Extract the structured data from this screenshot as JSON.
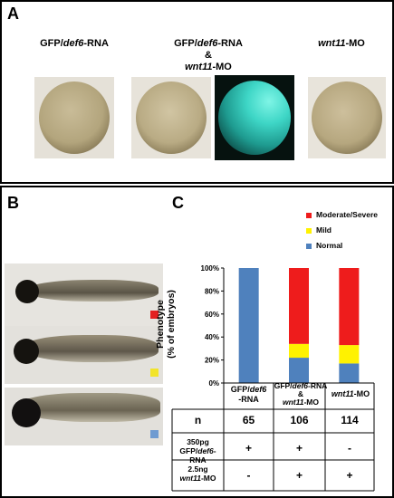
{
  "panels": {
    "a": {
      "letter": "A",
      "groups": [
        {
          "line1_pre": "GFP/",
          "line1_it": "def6",
          "line1_post": "-RNA"
        },
        {
          "line1_pre": "GFP/",
          "line1_it": "def6",
          "line1_post": "-RNA",
          "line2": "&",
          "line3_it": "wnt11",
          "line3_post": "-MO"
        },
        {
          "line1_it": "wnt11",
          "line1_post": "-MO"
        }
      ]
    },
    "b": {
      "letter": "B",
      "marker_colors": [
        "#e32020",
        "#f2e42a",
        "#6f9bd1"
      ]
    },
    "c": {
      "letter": "C"
    }
  },
  "chart_data": {
    "type": "bar",
    "stacked": true,
    "ylabel_line1": "Phenotype",
    "ylabel_line2": "(% of embryos)",
    "ylim": [
      0,
      100
    ],
    "yticks": [
      "0%",
      "20%",
      "40%",
      "60%",
      "80%",
      "100%"
    ],
    "legend": [
      {
        "name": "Moderate/Severe",
        "color": "#ee1c1c"
      },
      {
        "name": "Mild",
        "color": "#fff200"
      },
      {
        "name": "Normal",
        "color": "#4f81bd"
      }
    ],
    "categories": [
      {
        "pre": "GFP/",
        "it": "def6",
        "post": "",
        "line2": "-RNA"
      },
      {
        "pre": "GFP/",
        "it": "def6",
        "post": "-RNA",
        "line2": "&",
        "line3_it": "wnt11",
        "line3_post": "-MO"
      },
      {
        "pre": "",
        "it": "wnt11",
        "post": "-MO"
      }
    ],
    "series": [
      {
        "name": "Normal",
        "values": [
          100,
          22,
          17
        ],
        "color": "#4f81bd"
      },
      {
        "name": "Mild",
        "values": [
          0,
          12,
          16
        ],
        "color": "#fff200"
      },
      {
        "name": "Moderate/Severe",
        "values": [
          0,
          66,
          67
        ],
        "color": "#ee1c1c"
      }
    ]
  },
  "table": {
    "row_n_label": "n",
    "n_values": [
      "65",
      "106",
      "114"
    ],
    "row_rna_label_1": "350pg",
    "row_rna_label_2_pre": "GFP/",
    "row_rna_label_2_it": "def6",
    "row_rna_label_2_post": "-RNA",
    "rna_values": [
      "+",
      "+",
      "-"
    ],
    "row_mo_label_1": "2.5ng",
    "row_mo_label_2_it": "wnt11",
    "row_mo_label_2_post": "-MO",
    "mo_values": [
      "-",
      "+",
      "+"
    ]
  }
}
